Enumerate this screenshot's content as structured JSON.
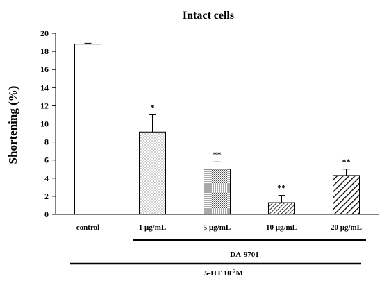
{
  "chart_data": {
    "type": "bar",
    "title": "Intact cells",
    "ylabel": "Shortening (%)",
    "xlabel": "",
    "ylim": [
      0,
      20
    ],
    "yticks": [
      0,
      2,
      4,
      6,
      8,
      10,
      12,
      14,
      16,
      18,
      20
    ],
    "categories": [
      "control",
      "1 μg/mL",
      "5 μg/mL",
      "10 μg/mL",
      "20 μg/mL"
    ],
    "values": [
      18.8,
      9.1,
      5.0,
      1.3,
      4.3
    ],
    "errors": [
      0.1,
      1.9,
      0.8,
      0.8,
      0.7
    ],
    "significance": [
      "",
      "*",
      "**",
      "**",
      "**"
    ],
    "fills": [
      "white",
      "dots",
      "dots-dense",
      "diagonal-fine",
      "diagonal-bold"
    ],
    "grid": false,
    "legend": "none"
  },
  "groups": {
    "drug_label": "DA-9701",
    "treatment_label": "5-HT 10",
    "treatment_exponent": "-7",
    "treatment_unit": "M"
  }
}
